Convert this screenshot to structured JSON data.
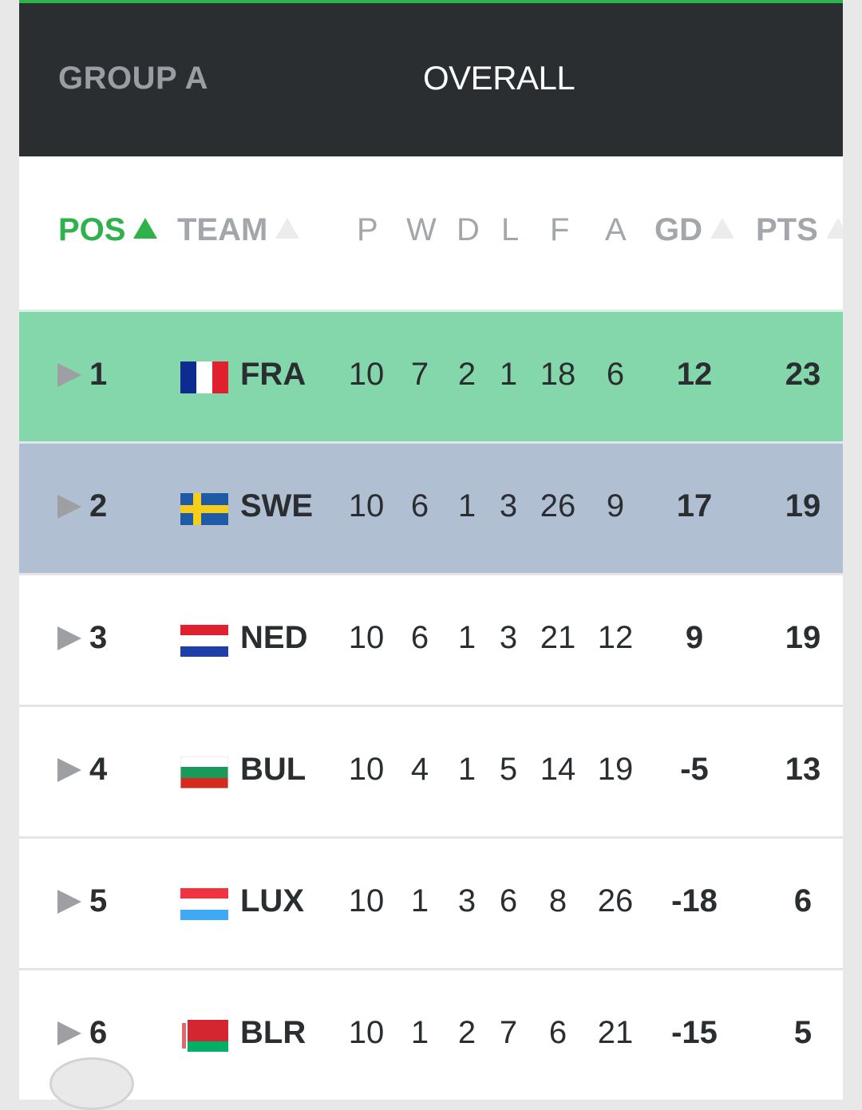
{
  "header": {
    "group": "GROUP A",
    "tab": "OVERALL"
  },
  "columns": {
    "pos": "POS",
    "team": "TEAM",
    "p": "P",
    "w": "W",
    "d": "D",
    "l": "L",
    "f": "F",
    "a": "A",
    "gd": "GD",
    "pts": "PTS"
  },
  "rows": [
    {
      "pos": "1",
      "team": "FRA",
      "flag": "france-flag-icon",
      "p": "10",
      "w": "7",
      "d": "2",
      "l": "1",
      "f": "18",
      "a": "6",
      "gd": "12",
      "pts": "23"
    },
    {
      "pos": "2",
      "team": "SWE",
      "flag": "sweden-flag-icon",
      "p": "10",
      "w": "6",
      "d": "1",
      "l": "3",
      "f": "26",
      "a": "9",
      "gd": "17",
      "pts": "19"
    },
    {
      "pos": "3",
      "team": "NED",
      "flag": "netherlands-flag-icon",
      "p": "10",
      "w": "6",
      "d": "1",
      "l": "3",
      "f": "21",
      "a": "12",
      "gd": "9",
      "pts": "19"
    },
    {
      "pos": "4",
      "team": "BUL",
      "flag": "bulgaria-flag-icon",
      "p": "10",
      "w": "4",
      "d": "1",
      "l": "5",
      "f": "14",
      "a": "19",
      "gd": "-5",
      "pts": "13"
    },
    {
      "pos": "5",
      "team": "LUX",
      "flag": "luxembourg-flag-icon",
      "p": "10",
      "w": "1",
      "d": "3",
      "l": "6",
      "f": "8",
      "a": "26",
      "gd": "-18",
      "pts": "6"
    },
    {
      "pos": "6",
      "team": "BLR",
      "flag": "belarus-flag-icon",
      "p": "10",
      "w": "1",
      "d": "2",
      "l": "7",
      "f": "6",
      "a": "21",
      "gd": "-15",
      "pts": "5"
    }
  ],
  "colors": {
    "accent": "#2fb24c",
    "header_bg": "#2a2e31",
    "qualify_direct": "#83d7aa",
    "qualify_playoff": "#b1bfd2"
  }
}
